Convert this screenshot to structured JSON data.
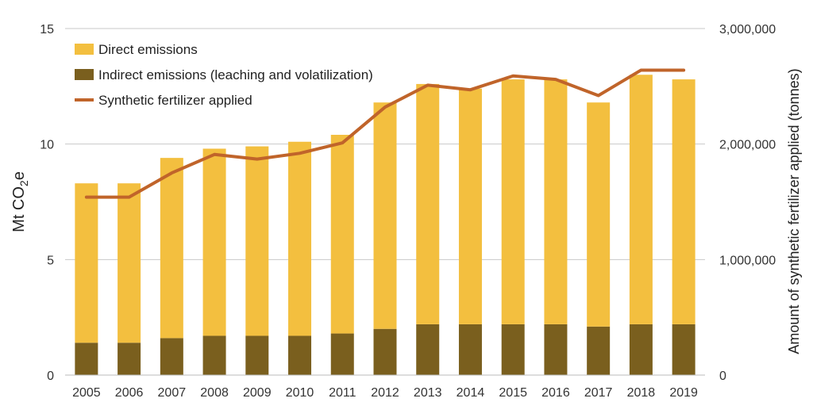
{
  "chart_data": {
    "type": "bar",
    "stacked": true,
    "categories": [
      "2005",
      "2006",
      "2007",
      "2008",
      "2009",
      "2010",
      "2011",
      "2012",
      "2013",
      "2014",
      "2015",
      "2016",
      "2017",
      "2018",
      "2019"
    ],
    "series": [
      {
        "name": "Indirect emissions (leaching and volatilization)",
        "type": "bar",
        "axis": "left",
        "color": "#7a5f1e",
        "values": [
          1.4,
          1.4,
          1.6,
          1.7,
          1.7,
          1.7,
          1.8,
          2.0,
          2.2,
          2.2,
          2.2,
          2.2,
          2.1,
          2.2,
          2.2
        ]
      },
      {
        "name": "Direct emissions",
        "type": "bar",
        "axis": "left",
        "color": "#f3bf3f",
        "values": [
          6.9,
          6.9,
          7.8,
          8.1,
          8.2,
          8.4,
          8.6,
          9.8,
          10.4,
          10.2,
          10.6,
          10.6,
          9.7,
          10.8,
          10.6
        ]
      },
      {
        "name": "Synthetic fertilizer applied",
        "type": "line",
        "axis": "right",
        "color": "#c0642a",
        "values": [
          1540000,
          1540000,
          1750000,
          1910000,
          1870000,
          1920000,
          2010000,
          2320000,
          2510000,
          2470000,
          2590000,
          2560000,
          2420000,
          2640000,
          2640000
        ]
      }
    ],
    "y_left": {
      "label_main": "Mt CO",
      "label_sub": "2",
      "label_end": "e",
      "ylim": [
        0,
        15
      ],
      "ticks": [
        "0",
        "5",
        "10",
        "15"
      ]
    },
    "y_right": {
      "label": "Amount of synthetic fertilizer applied (tonnes)",
      "ylim": [
        0,
        3000000
      ],
      "ticks": [
        "0",
        "1,000,000",
        "2,000,000",
        "3,000,000"
      ]
    },
    "legend": {
      "position": "top-left",
      "entries": [
        {
          "label": "Direct emissions",
          "color": "#f3bf3f",
          "kind": "bar"
        },
        {
          "label": "Indirect emissions (leaching and volatilization)",
          "color": "#7a5f1e",
          "kind": "bar"
        },
        {
          "label": "Synthetic fertilizer applied",
          "color": "#c0642a",
          "kind": "line"
        }
      ]
    },
    "grid": true,
    "gridline_color": "#c8c8c8"
  }
}
